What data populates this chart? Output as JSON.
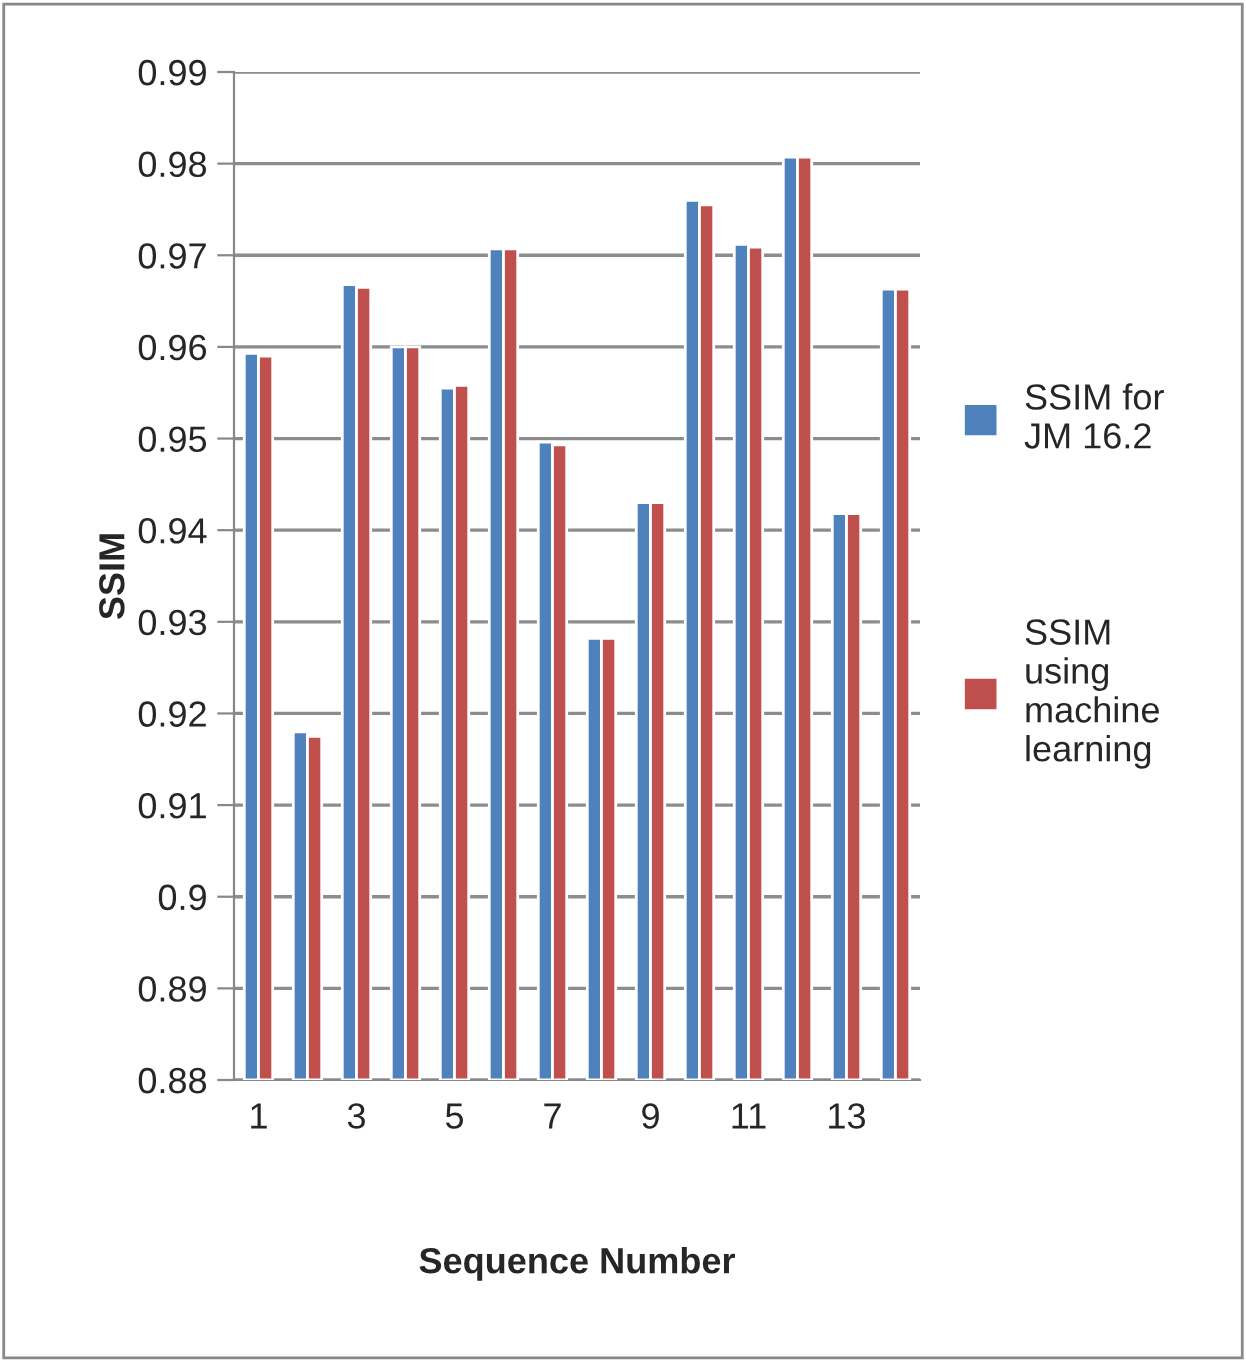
{
  "chart_data": {
    "type": "bar",
    "xlabel": "Sequence Number",
    "ylabel": "SSIM",
    "categories": [
      "1",
      null,
      "3",
      null,
      "5",
      null,
      "7",
      null,
      "9",
      null,
      "11",
      null,
      "13",
      null
    ],
    "series": [
      {
        "name": "SSIM for JM 16.2",
        "color": "#4f81bd",
        "values": [
          0.9593,
          0.918,
          0.9668,
          0.96,
          0.9555,
          0.9707,
          0.9496,
          0.9282,
          0.943,
          0.976,
          0.9712,
          0.9807,
          0.9418,
          0.9663
        ]
      },
      {
        "name": "SSIM using machine learning",
        "color": "#c0504d",
        "values": [
          0.959,
          0.9175,
          0.9665,
          0.96,
          0.9558,
          0.9707,
          0.9493,
          0.9282,
          0.943,
          0.9755,
          0.9709,
          0.9807,
          0.9418,
          0.9663
        ]
      }
    ],
    "ylim": [
      0.88,
      0.99
    ],
    "yticks": [
      0.88,
      0.89,
      0.9,
      0.91,
      0.92,
      0.93,
      0.94,
      0.95,
      0.96,
      0.97,
      0.98,
      0.99
    ],
    "grid": "y",
    "legend": "right"
  }
}
